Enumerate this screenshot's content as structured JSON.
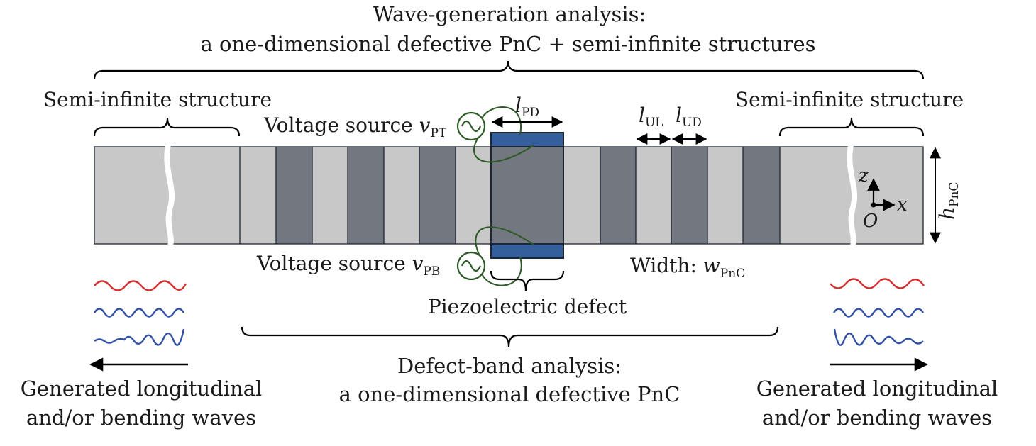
{
  "top_title": {
    "line1": "Wave-generation analysis:",
    "line2": "a one-dimensional defective PnC + semi-infinite structures"
  },
  "bottom_title": {
    "line1": "Defect-band analysis:",
    "line2": "a one-dimensional defective PnC"
  },
  "labels": {
    "semi_left": "Semi-infinite structure",
    "semi_right": "Semi-infinite structure",
    "voltage_top_prefix": "Voltage source ",
    "voltage_top_var": "v",
    "voltage_top_sub": "PT",
    "voltage_bottom_prefix": "Voltage source ",
    "voltage_bottom_var": "v",
    "voltage_bottom_sub": "PB",
    "width_prefix": "Width: ",
    "width_var": "w",
    "width_sub": "PnC",
    "piezo_defect": "Piezoelectric defect",
    "l_pd": "l",
    "l_pd_sub": "PD",
    "l_ul": "l",
    "l_ul_sub": "UL",
    "l_ud": "l",
    "l_ud_sub": "UD",
    "h_pnc": "h",
    "h_pnc_sub": "PnC",
    "axis_z": "z",
    "axis_x": "x",
    "axis_o": "O"
  },
  "generated_left": {
    "line1": "Generated longitudinal",
    "line2": "and/or bending waves"
  },
  "generated_right": {
    "line1": "Generated longitudinal",
    "line2": "and/or bending waves"
  },
  "colors": {
    "light_cell": "#c8c8c8",
    "dark_cell": "#737780",
    "piezo": "#355e9c",
    "wire": "#2d5a27",
    "wave_red": "#d62d2d",
    "wave_blue": "#3150a6",
    "outline": "#1e2632"
  },
  "icons": {
    "ac_source": "ac-source-icon"
  }
}
